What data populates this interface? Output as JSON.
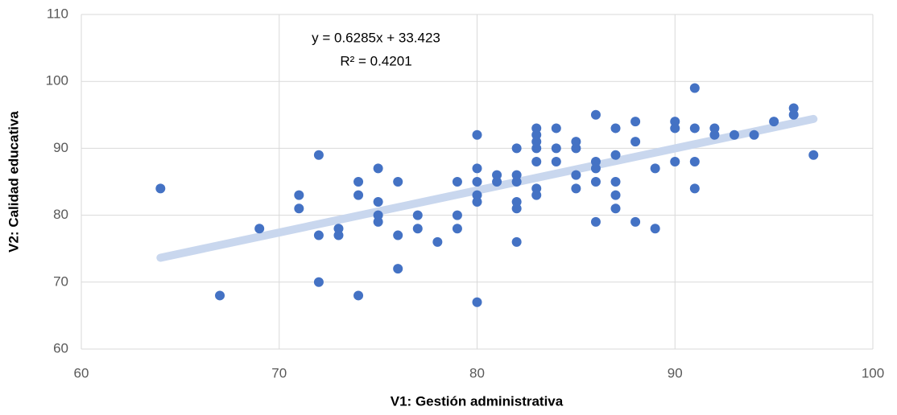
{
  "chart_data": {
    "type": "scatter",
    "x_label": "V1: Gestión administrativa",
    "y_label": "V2: Calidad educativa",
    "annotations": [
      "y = 0.6285x + 33.423",
      "R² = 0.4201"
    ],
    "trendline": {
      "slope": 0.6285,
      "intercept": 33.423,
      "color": "#c9d7ee"
    },
    "color": "#4472c4",
    "grid": true,
    "x": [
      64,
      67,
      69,
      71,
      71,
      72,
      72,
      72,
      73,
      73,
      74,
      74,
      74,
      75,
      75,
      75,
      75,
      76,
      76,
      76,
      77,
      77,
      78,
      79,
      79,
      79,
      80,
      80,
      80,
      80,
      80,
      80,
      81,
      81,
      82,
      82,
      82,
      82,
      82,
      82,
      83,
      83,
      83,
      83,
      83,
      83,
      83,
      84,
      84,
      84,
      85,
      85,
      85,
      85,
      86,
      86,
      86,
      86,
      86,
      87,
      87,
      87,
      87,
      87,
      88,
      88,
      88,
      89,
      89,
      90,
      90,
      90,
      91,
      91,
      91,
      91,
      92,
      92,
      93,
      94,
      95,
      96,
      96,
      97
    ],
    "values": [
      84,
      68,
      78,
      83,
      81,
      89,
      77,
      70,
      78,
      77,
      85,
      83,
      68,
      87,
      82,
      80,
      79,
      85,
      77,
      72,
      80,
      78,
      76,
      85,
      80,
      78,
      92,
      87,
      85,
      83,
      82,
      67,
      86,
      85,
      90,
      86,
      85,
      82,
      81,
      76,
      93,
      92,
      91,
      90,
      88,
      84,
      83,
      93,
      90,
      88,
      91,
      90,
      86,
      84,
      95,
      88,
      87,
      85,
      79,
      93,
      89,
      85,
      83,
      81,
      94,
      91,
      79,
      87,
      78,
      94,
      93,
      88,
      99,
      93,
      88,
      84,
      93,
      92,
      92,
      92,
      94,
      96,
      95,
      89
    ],
    "xlim": [
      60,
      100
    ],
    "xticks": [
      60,
      70,
      80,
      90,
      100
    ],
    "ylim": [
      60,
      110
    ],
    "yticks": [
      60,
      70,
      80,
      90,
      100,
      110
    ]
  }
}
